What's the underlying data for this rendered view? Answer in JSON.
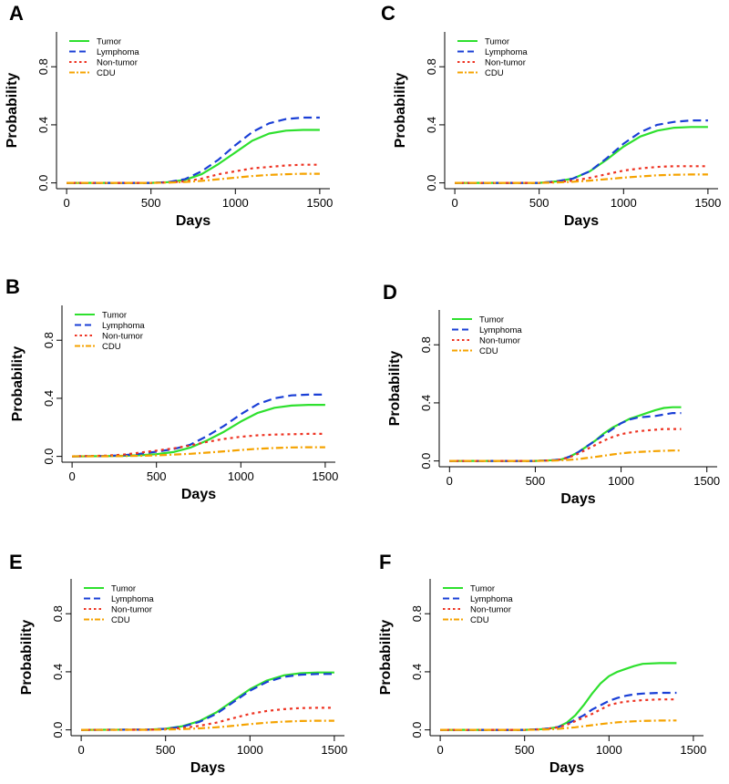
{
  "figure": {
    "legend_entries": [
      "Tumor",
      "Lymphoma",
      "Non-tumor",
      "CDU"
    ],
    "series_colors": {
      "Tumor": "#2ee02e",
      "Lymphoma": "#1a3fd6",
      "Non-tumor": "#ee3322",
      "CDU": "#f5a300"
    }
  },
  "chart_data": [
    {
      "panel": "A",
      "type": "line",
      "xlabel": "Days",
      "ylabel": "Probability",
      "xlim": [
        0,
        1500
      ],
      "ylim": [
        0,
        1
      ],
      "xticks": [
        "0",
        "500",
        "1000",
        "1500"
      ],
      "yticks": [
        "0.0",
        "0.4",
        "0.8"
      ],
      "legend": "top-left",
      "x": [
        0,
        500,
        600,
        700,
        800,
        900,
        1000,
        1100,
        1200,
        1300,
        1400,
        1500
      ],
      "series": [
        {
          "name": "Tumor",
          "values": [
            0,
            0,
            0.005,
            0.02,
            0.06,
            0.13,
            0.21,
            0.29,
            0.34,
            0.36,
            0.365,
            0.365
          ]
        },
        {
          "name": "Lymphoma",
          "values": [
            0,
            0,
            0.005,
            0.025,
            0.08,
            0.16,
            0.26,
            0.35,
            0.41,
            0.44,
            0.45,
            0.45
          ]
        },
        {
          "name": "Non-tumor",
          "values": [
            0,
            0,
            0.003,
            0.01,
            0.03,
            0.06,
            0.08,
            0.1,
            0.11,
            0.12,
            0.125,
            0.125
          ]
        },
        {
          "name": "CDU",
          "values": [
            0,
            0,
            0.002,
            0.006,
            0.014,
            0.025,
            0.036,
            0.047,
            0.055,
            0.06,
            0.063,
            0.063
          ]
        }
      ]
    },
    {
      "panel": "C",
      "type": "line",
      "xlabel": "Days",
      "ylabel": "Probability",
      "xlim": [
        0,
        1500
      ],
      "ylim": [
        0,
        1
      ],
      "xticks": [
        "0",
        "500",
        "1000",
        "1500"
      ],
      "yticks": [
        "0.0",
        "0.4",
        "0.8"
      ],
      "legend": "top-left",
      "x": [
        0,
        500,
        600,
        700,
        800,
        900,
        1000,
        1100,
        1200,
        1300,
        1400,
        1500
      ],
      "series": [
        {
          "name": "Tumor",
          "values": [
            0,
            0,
            0.01,
            0.03,
            0.08,
            0.16,
            0.25,
            0.32,
            0.36,
            0.38,
            0.385,
            0.385
          ]
        },
        {
          "name": "Lymphoma",
          "values": [
            0,
            0,
            0.01,
            0.03,
            0.08,
            0.17,
            0.27,
            0.35,
            0.4,
            0.42,
            0.43,
            0.43
          ]
        },
        {
          "name": "Non-tumor",
          "values": [
            0,
            0,
            0.005,
            0.015,
            0.035,
            0.06,
            0.085,
            0.1,
            0.11,
            0.115,
            0.115,
            0.115
          ]
        },
        {
          "name": "CDU",
          "values": [
            0,
            0,
            0.003,
            0.008,
            0.016,
            0.026,
            0.036,
            0.045,
            0.052,
            0.056,
            0.058,
            0.058
          ]
        }
      ]
    },
    {
      "panel": "B",
      "type": "line",
      "xlabel": "Days",
      "ylabel": "Probability",
      "xlim": [
        0,
        1500
      ],
      "ylim": [
        0,
        1
      ],
      "xticks": [
        "0",
        "500",
        "1000",
        "1500"
      ],
      "yticks": [
        "0.0",
        "0.4",
        "0.8"
      ],
      "legend": "top-left",
      "x": [
        0,
        200,
        300,
        400,
        500,
        600,
        700,
        800,
        900,
        1000,
        1100,
        1200,
        1300,
        1400,
        1500
      ],
      "series": [
        {
          "name": "Tumor",
          "values": [
            0,
            0.002,
            0.004,
            0.008,
            0.015,
            0.03,
            0.06,
            0.11,
            0.17,
            0.24,
            0.3,
            0.335,
            0.35,
            0.355,
            0.355
          ]
        },
        {
          "name": "Lymphoma",
          "values": [
            0,
            0.003,
            0.008,
            0.018,
            0.032,
            0.05,
            0.08,
            0.14,
            0.21,
            0.29,
            0.36,
            0.4,
            0.42,
            0.425,
            0.425
          ]
        },
        {
          "name": "Non-tumor",
          "values": [
            0,
            0.005,
            0.012,
            0.025,
            0.04,
            0.055,
            0.075,
            0.1,
            0.12,
            0.135,
            0.145,
            0.15,
            0.153,
            0.155,
            0.155
          ]
        },
        {
          "name": "CDU",
          "values": [
            0,
            0.001,
            0.002,
            0.004,
            0.007,
            0.012,
            0.018,
            0.026,
            0.035,
            0.044,
            0.052,
            0.058,
            0.062,
            0.063,
            0.063
          ]
        }
      ]
    },
    {
      "panel": "D",
      "type": "line",
      "xlabel": "Days",
      "ylabel": "Probability",
      "xlim": [
        0,
        1500
      ],
      "ylim": [
        0,
        1
      ],
      "xticks": [
        "0",
        "500",
        "1000",
        "1500"
      ],
      "yticks": [
        "0.0",
        "0.4",
        "0.8"
      ],
      "legend": "top-left",
      "x": [
        0,
        500,
        600,
        650,
        700,
        750,
        800,
        850,
        900,
        950,
        1000,
        1050,
        1100,
        1150,
        1200,
        1250,
        1300,
        1350
      ],
      "series": [
        {
          "name": "Tumor",
          "values": [
            0,
            0,
            0.005,
            0.01,
            0.03,
            0.06,
            0.1,
            0.14,
            0.19,
            0.23,
            0.26,
            0.29,
            0.31,
            0.33,
            0.35,
            0.365,
            0.37,
            0.37
          ]
        },
        {
          "name": "Lymphoma",
          "values": [
            0,
            0,
            0.005,
            0.01,
            0.03,
            0.06,
            0.1,
            0.14,
            0.18,
            0.22,
            0.26,
            0.285,
            0.3,
            0.305,
            0.31,
            0.32,
            0.33,
            0.33
          ]
        },
        {
          "name": "Non-tumor",
          "values": [
            0,
            0,
            0.004,
            0.01,
            0.025,
            0.05,
            0.08,
            0.11,
            0.14,
            0.165,
            0.185,
            0.195,
            0.205,
            0.21,
            0.215,
            0.22,
            0.22,
            0.22
          ]
        },
        {
          "name": "CDU",
          "values": [
            0,
            0,
            0.002,
            0.004,
            0.008,
            0.013,
            0.02,
            0.028,
            0.036,
            0.045,
            0.052,
            0.058,
            0.062,
            0.065,
            0.068,
            0.07,
            0.072,
            0.072
          ]
        }
      ]
    },
    {
      "panel": "E",
      "type": "line",
      "xlabel": "Days",
      "ylabel": "Probability",
      "xlim": [
        0,
        1500
      ],
      "ylim": [
        0,
        1
      ],
      "xticks": [
        "0",
        "500",
        "1000",
        "1500"
      ],
      "yticks": [
        "0.0",
        "0.4",
        "0.8"
      ],
      "legend": "top-left",
      "x": [
        0,
        400,
        500,
        600,
        700,
        800,
        900,
        1000,
        1100,
        1200,
        1300,
        1400,
        1500
      ],
      "series": [
        {
          "name": "Tumor",
          "values": [
            0,
            0.002,
            0.008,
            0.025,
            0.06,
            0.12,
            0.2,
            0.28,
            0.34,
            0.375,
            0.39,
            0.395,
            0.395
          ]
        },
        {
          "name": "Lymphoma",
          "values": [
            0,
            0.002,
            0.007,
            0.022,
            0.055,
            0.11,
            0.19,
            0.27,
            0.33,
            0.365,
            0.38,
            0.385,
            0.385
          ]
        },
        {
          "name": "Non-tumor",
          "values": [
            0,
            0.001,
            0.005,
            0.013,
            0.028,
            0.05,
            0.08,
            0.11,
            0.13,
            0.143,
            0.15,
            0.152,
            0.152
          ]
        },
        {
          "name": "CDU",
          "values": [
            0,
            0.0005,
            0.002,
            0.005,
            0.01,
            0.018,
            0.028,
            0.04,
            0.05,
            0.057,
            0.061,
            0.063,
            0.063
          ]
        }
      ]
    },
    {
      "panel": "F",
      "type": "line",
      "xlabel": "Days",
      "ylabel": "Probability",
      "xlim": [
        0,
        1500
      ],
      "ylim": [
        0,
        1
      ],
      "xticks": [
        "0",
        "500",
        "1000",
        "1500"
      ],
      "yticks": [
        "0.0",
        "0.4",
        "0.8"
      ],
      "legend": "top-left",
      "x": [
        0,
        500,
        600,
        650,
        700,
        750,
        800,
        850,
        900,
        950,
        1000,
        1050,
        1100,
        1150,
        1200,
        1300,
        1400
      ],
      "series": [
        {
          "name": "Tumor",
          "values": [
            0,
            0,
            0.005,
            0.01,
            0.02,
            0.05,
            0.1,
            0.17,
            0.25,
            0.32,
            0.37,
            0.4,
            0.42,
            0.44,
            0.455,
            0.46,
            0.46
          ]
        },
        {
          "name": "Lymphoma",
          "values": [
            0,
            0,
            0.005,
            0.01,
            0.02,
            0.04,
            0.07,
            0.1,
            0.14,
            0.17,
            0.2,
            0.22,
            0.235,
            0.245,
            0.25,
            0.255,
            0.255
          ]
        },
        {
          "name": "Non-tumor",
          "values": [
            0,
            0,
            0.004,
            0.01,
            0.018,
            0.035,
            0.06,
            0.085,
            0.11,
            0.14,
            0.17,
            0.185,
            0.195,
            0.2,
            0.205,
            0.21,
            0.21
          ]
        },
        {
          "name": "CDU",
          "values": [
            0,
            0,
            0.002,
            0.004,
            0.007,
            0.012,
            0.018,
            0.025,
            0.032,
            0.04,
            0.046,
            0.052,
            0.056,
            0.059,
            0.062,
            0.064,
            0.065
          ]
        }
      ]
    }
  ]
}
